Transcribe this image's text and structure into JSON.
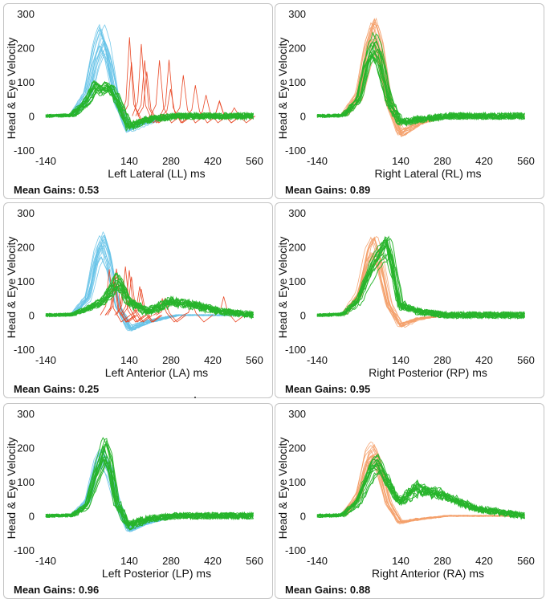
{
  "colors": {
    "left_head": "#67c3e8",
    "left_eye_saccade": "#e8401c",
    "right_head": "#f4a06a",
    "eye": "#27b42b",
    "panel_border": "#c4c4c4"
  },
  "shared": {
    "ylabel": "Head & Eye Velocity",
    "gain_prefix": "Mean Gains:",
    "x_ticks": [
      "-140",
      "140",
      "280",
      "420",
      "560"
    ],
    "y_ticks": [
      "300",
      "200",
      "100",
      "0",
      "-100"
    ]
  },
  "panels": [
    {
      "id": "LL",
      "xlabel": "Left Lateral (LL) ms",
      "gain": "0.53"
    },
    {
      "id": "RL",
      "xlabel": "Right Lateral (RL) ms",
      "gain": "0.89"
    },
    {
      "id": "LA",
      "xlabel": "Left Anterior (LA) ms",
      "gain": "0.25"
    },
    {
      "id": "RP",
      "xlabel": "Right Posterior (RP) ms",
      "gain": "0.95"
    },
    {
      "id": "LP",
      "xlabel": "Left Posterior (LP) ms",
      "gain": "0.96"
    },
    {
      "id": "RA",
      "xlabel": "Right Anterior (RA) ms",
      "gain": "0.88"
    }
  ],
  "chart_data": [
    {
      "type": "line",
      "panel": "LL",
      "xlabel": "Left Lateral (LL) ms",
      "ylabel": "Head & Eye Velocity",
      "xlim": [
        -140,
        560
      ],
      "ylim": [
        -100,
        300
      ],
      "series": [
        {
          "role": "head",
          "color": "#67c3e8",
          "x": [
            -140,
            -50,
            0,
            30,
            50,
            70,
            100,
            140,
            200,
            300,
            560
          ],
          "y": [
            0,
            2,
            60,
            180,
            230,
            180,
            40,
            -40,
            -20,
            0,
            0
          ]
        },
        {
          "role": "eye",
          "color": "#27b42b",
          "x": [
            -140,
            -50,
            0,
            30,
            50,
            70,
            100,
            140,
            200,
            300,
            560
          ],
          "y": [
            0,
            2,
            40,
            90,
            70,
            85,
            50,
            -30,
            -10,
            0,
            0
          ]
        },
        {
          "role": "covert-saccades",
          "color": "#e8401c",
          "x": [
            110,
            130,
            150,
            175,
            200,
            225,
            250,
            275,
            300,
            330,
            360,
            400,
            450,
            500
          ],
          "y": [
            180,
            250,
            240,
            230,
            210,
            190,
            170,
            150,
            130,
            110,
            90,
            80,
            50,
            30
          ]
        }
      ]
    },
    {
      "type": "line",
      "panel": "RL",
      "xlabel": "Right Lateral (RL) ms",
      "ylabel": "Head & Eye Velocity",
      "xlim": [
        -140,
        560
      ],
      "ylim": [
        -100,
        300
      ],
      "series": [
        {
          "role": "head",
          "color": "#f4a06a",
          "x": [
            -140,
            -50,
            0,
            30,
            50,
            70,
            100,
            140,
            200,
            300,
            560
          ],
          "y": [
            0,
            2,
            60,
            190,
            240,
            190,
            40,
            -50,
            -20,
            0,
            0
          ]
        },
        {
          "role": "eye",
          "color": "#27b42b",
          "x": [
            -140,
            -50,
            0,
            30,
            50,
            70,
            100,
            140,
            200,
            300,
            560
          ],
          "y": [
            0,
            2,
            50,
            170,
            210,
            170,
            50,
            -20,
            -10,
            0,
            0
          ]
        }
      ]
    },
    {
      "type": "line",
      "panel": "LA",
      "xlabel": "Left Anterior (LA) ms",
      "ylabel": "Head & Eye Velocity",
      "xlim": [
        -140,
        560
      ],
      "ylim": [
        -100,
        300
      ],
      "series": [
        {
          "role": "head",
          "color": "#67c3e8",
          "x": [
            -140,
            -50,
            0,
            30,
            50,
            70,
            100,
            140,
            200,
            300,
            560
          ],
          "y": [
            0,
            2,
            50,
            170,
            210,
            160,
            30,
            -40,
            -20,
            0,
            0
          ]
        },
        {
          "role": "eye",
          "color": "#27b42b",
          "x": [
            -140,
            -50,
            0,
            50,
            100,
            140,
            200,
            280,
            350,
            450,
            560
          ],
          "y": [
            0,
            2,
            20,
            40,
            100,
            40,
            10,
            40,
            30,
            10,
            0
          ]
        },
        {
          "role": "covert-saccades",
          "color": "#e8401c",
          "x": [
            80,
            100,
            120,
            150,
            180,
            210,
            250,
            300,
            350,
            400,
            450,
            500
          ],
          "y": [
            130,
            130,
            140,
            110,
            90,
            90,
            80,
            75,
            70,
            65,
            60,
            40
          ]
        }
      ]
    },
    {
      "type": "line",
      "panel": "RP",
      "xlabel": "Right Posterior (RP) ms",
      "ylabel": "Head & Eye Velocity",
      "xlim": [
        -140,
        560
      ],
      "ylim": [
        -100,
        300
      ],
      "series": [
        {
          "role": "head",
          "color": "#f4a06a",
          "x": [
            -140,
            -50,
            0,
            30,
            50,
            70,
            100,
            140,
            200,
            300,
            560
          ],
          "y": [
            0,
            2,
            60,
            170,
            200,
            150,
            30,
            -30,
            -10,
            0,
            0
          ]
        },
        {
          "role": "eye",
          "color": "#27b42b",
          "x": [
            -140,
            -50,
            0,
            50,
            80,
            100,
            120,
            140,
            200,
            300,
            560
          ],
          "y": [
            0,
            2,
            40,
            140,
            180,
            200,
            120,
            30,
            10,
            0,
            0
          ]
        }
      ]
    },
    {
      "type": "line",
      "panel": "LP",
      "xlabel": "Left Posterior (LP) ms",
      "ylabel": "Head & Eye Velocity",
      "xlim": [
        -140,
        560
      ],
      "ylim": [
        -100,
        300
      ],
      "series": [
        {
          "role": "head",
          "color": "#67c3e8",
          "x": [
            -140,
            -50,
            0,
            30,
            50,
            70,
            100,
            140,
            200,
            300,
            560
          ],
          "y": [
            0,
            2,
            40,
            140,
            170,
            140,
            40,
            -40,
            -20,
            0,
            0
          ]
        },
        {
          "role": "eye",
          "color": "#27b42b",
          "x": [
            -140,
            -50,
            0,
            30,
            60,
            80,
            100,
            140,
            200,
            300,
            560
          ],
          "y": [
            0,
            2,
            30,
            120,
            200,
            150,
            40,
            -30,
            -10,
            0,
            0
          ]
        }
      ]
    },
    {
      "type": "line",
      "panel": "RA",
      "xlabel": "Right Anterior (RA) ms",
      "ylabel": "Head & Eye Velocity",
      "xlim": [
        -140,
        560
      ],
      "ylim": [
        -100,
        300
      ],
      "series": [
        {
          "role": "head",
          "color": "#f4a06a",
          "x": [
            -140,
            -50,
            0,
            30,
            50,
            70,
            100,
            140,
            200,
            300,
            560
          ],
          "y": [
            0,
            2,
            60,
            170,
            190,
            150,
            40,
            -20,
            -10,
            0,
            0
          ]
        },
        {
          "role": "eye",
          "color": "#27b42b",
          "x": [
            -140,
            -50,
            0,
            50,
            70,
            100,
            140,
            200,
            280,
            400,
            560
          ],
          "y": [
            0,
            2,
            40,
            140,
            150,
            100,
            40,
            80,
            60,
            20,
            0
          ]
        }
      ]
    }
  ]
}
